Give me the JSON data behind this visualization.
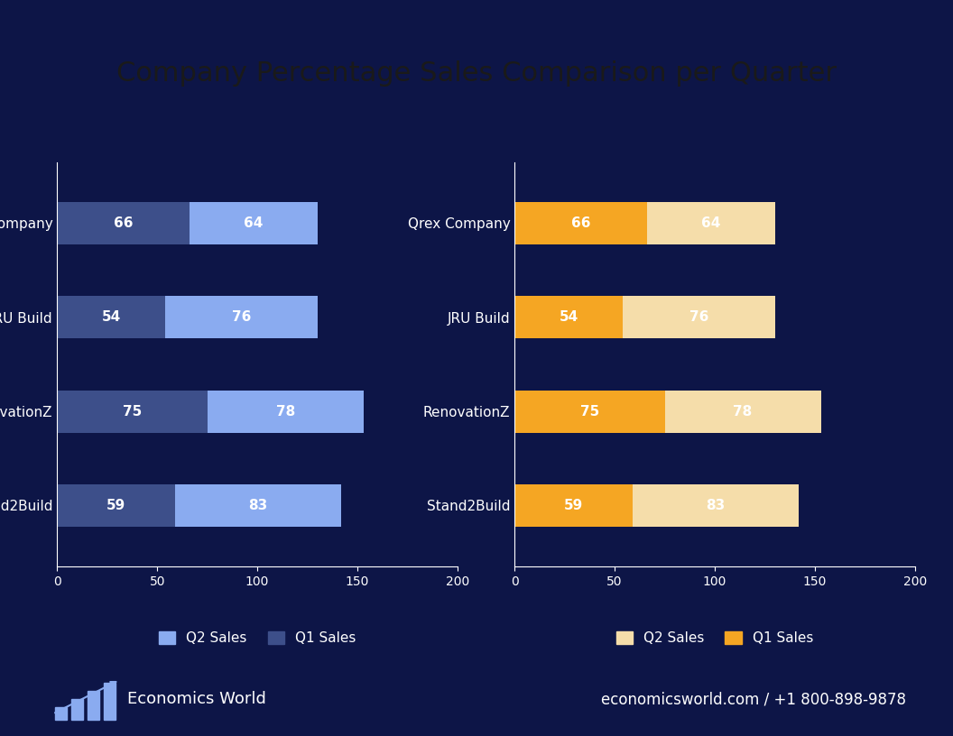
{
  "title": "Company Percentage Sales Comparison per Quarter",
  "title_bg_color": "#F5B731",
  "bg_color": "#0D1547",
  "text_color": "#FFFFFF",
  "categories": [
    "Qrex Company",
    "JRU Build",
    "RenovationZ",
    "Stand2Build"
  ],
  "q1_values": [
    66,
    54,
    75,
    59
  ],
  "q2_values": [
    64,
    76,
    78,
    83
  ],
  "left_q2_color": "#8AABF0",
  "left_q1_color": "#3D4F8A",
  "right_q2_color": "#F5DDAA",
  "right_q1_color": "#F5A623",
  "bar_height": 0.45,
  "xlim": [
    0,
    200
  ],
  "xticks": [
    0,
    50,
    100,
    150,
    200
  ],
  "footer_left": "Economics World",
  "footer_right": "economicsworld.com / +1 800-898-9878",
  "legend_left_q1": "Q1 Sales",
  "legend_left_q2": "Q2 Sales",
  "legend_right_q1": "Q1 Sales",
  "legend_right_q2": "Q2 Sales"
}
